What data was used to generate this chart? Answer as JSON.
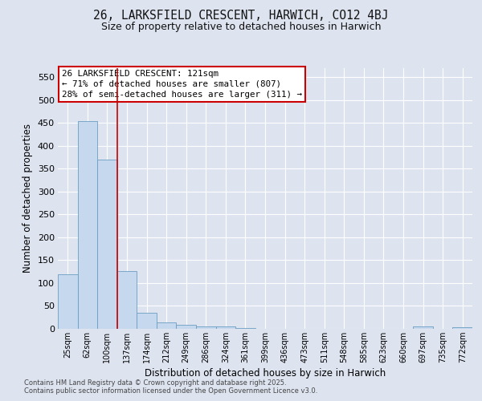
{
  "title1": "26, LARKSFIELD CRESCENT, HARWICH, CO12 4BJ",
  "title2": "Size of property relative to detached houses in Harwich",
  "xlabel": "Distribution of detached houses by size in Harwich",
  "ylabel": "Number of detached properties",
  "bar_color": "#c5d8ee",
  "bar_edge_color": "#6b9dc2",
  "background_color": "#dde4f0",
  "grid_color": "#ffffff",
  "categories": [
    "25sqm",
    "62sqm",
    "100sqm",
    "137sqm",
    "174sqm",
    "212sqm",
    "249sqm",
    "286sqm",
    "324sqm",
    "361sqm",
    "399sqm",
    "436sqm",
    "473sqm",
    "511sqm",
    "548sqm",
    "585sqm",
    "623sqm",
    "660sqm",
    "697sqm",
    "735sqm",
    "772sqm"
  ],
  "values": [
    120,
    455,
    370,
    127,
    35,
    14,
    8,
    5,
    5,
    2,
    0,
    0,
    0,
    0,
    0,
    0,
    0,
    0,
    5,
    0,
    3
  ],
  "red_line_x": 2.5,
  "ylim": [
    0,
    570
  ],
  "yticks": [
    0,
    50,
    100,
    150,
    200,
    250,
    300,
    350,
    400,
    450,
    500,
    550
  ],
  "annotation_text": "26 LARKSFIELD CRESCENT: 121sqm\n← 71% of detached houses are smaller (807)\n28% of semi-detached houses are larger (311) →",
  "footer1": "Contains HM Land Registry data © Crown copyright and database right 2025.",
  "footer2": "Contains public sector information licensed under the Open Government Licence v3.0."
}
